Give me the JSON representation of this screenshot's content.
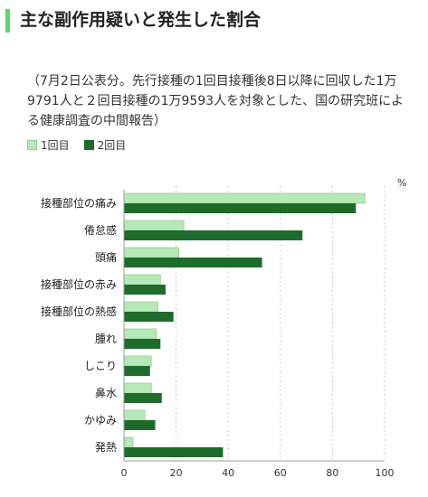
{
  "title": "主な副作用疑いと発生した割合",
  "note": "（7月2日公表分。先行接種の1回目接種後8日以降に回収した1万9791人と２回目接種の1万9593人を対象とした、国の研究班による健康調査の中間報告）",
  "colors": {
    "accent": "#5fd36f",
    "dose1": "#b7e8b8",
    "dose1_border": "#8fd192",
    "dose2": "#1e6b2b",
    "grid": "#cccccc",
    "axis": "#999999"
  },
  "chart_data": {
    "type": "bar",
    "orientation": "horizontal",
    "unit": "%",
    "categories": [
      "接種部位の痛み",
      "倦怠感",
      "頭痛",
      "接種部位の赤み",
      "接種部位の熱感",
      "腫れ",
      "しこり",
      "鼻水",
      "かゆみ",
      "発熱"
    ],
    "series": [
      {
        "name": "1回目",
        "values": [
          92.5,
          23,
          21,
          14,
          13,
          12.5,
          10.5,
          10.5,
          8,
          3.5
        ]
      },
      {
        "name": "2回目",
        "values": [
          89,
          68.5,
          53,
          16,
          19,
          14,
          10,
          14.5,
          12,
          38
        ]
      }
    ],
    "xlim": [
      0,
      100
    ],
    "ticks": [
      0,
      20,
      40,
      60,
      80,
      100
    ],
    "grid": true,
    "legend_position": "top-left"
  }
}
